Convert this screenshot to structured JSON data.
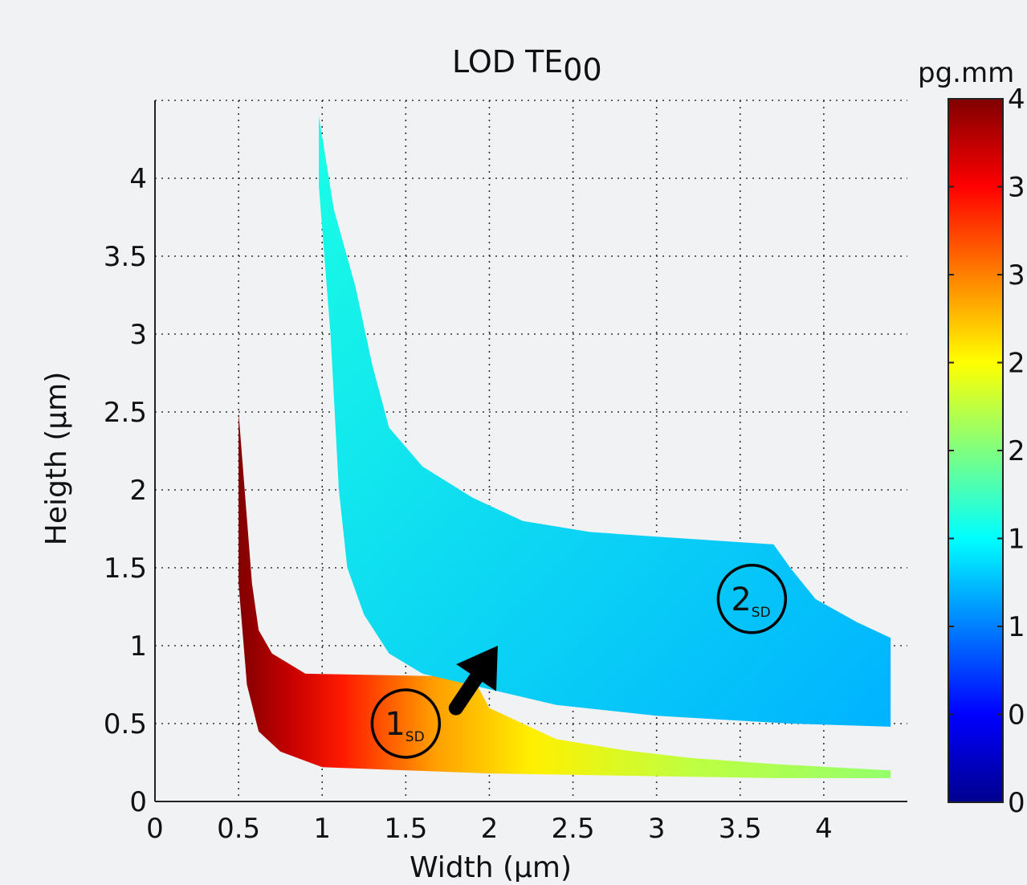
{
  "chart_data": {
    "type": "heatmap",
    "title": "LOD TE",
    "title_subscript": "00",
    "xlabel": "Width (µm)",
    "ylabel": "Heigth (µm)",
    "xlim": [
      0,
      4.5
    ],
    "ylim": [
      0,
      4.5
    ],
    "x_ticks": [
      0,
      0.5,
      1,
      1.5,
      2,
      2.5,
      3,
      3.5,
      4
    ],
    "x_tick_labels": [
      "0",
      "0.5",
      "1",
      "1.5",
      "2",
      "2.5",
      "3",
      "3.5",
      "4"
    ],
    "y_ticks": [
      0,
      0.5,
      1,
      1.5,
      2,
      2.5,
      3,
      3.5,
      4
    ],
    "y_tick_labels": [
      "0",
      "0.5",
      "1",
      "1.5",
      "2",
      "2.5",
      "3",
      "3.5",
      "4"
    ],
    "grid": true,
    "colormap": "jet",
    "colorbar": {
      "unit_label": "pg.mm",
      "tick_labels": [
        "4",
        "3",
        "3",
        "2",
        "2",
        "1",
        "1",
        "0",
        "0"
      ]
    },
    "regions": [
      {
        "label": "1",
        "label_subscript": "SD",
        "label_center": [
          1.5,
          0.5
        ],
        "relative_value_range": [
          0.52,
          1.0
        ],
        "boundary_upper": [
          [
            0.5,
            2.5
          ],
          [
            0.58,
            1.4
          ],
          [
            0.62,
            1.1
          ],
          [
            0.7,
            0.95
          ],
          [
            0.9,
            0.82
          ],
          [
            1.9,
            0.8
          ],
          [
            2.0,
            0.6
          ],
          [
            2.4,
            0.4
          ],
          [
            2.8,
            0.33
          ],
          [
            3.2,
            0.28
          ],
          [
            3.7,
            0.24
          ],
          [
            4.4,
            0.2
          ]
        ],
        "boundary_lower": [
          [
            0.5,
            1.4
          ],
          [
            0.55,
            0.75
          ],
          [
            0.62,
            0.45
          ],
          [
            0.75,
            0.32
          ],
          [
            1.0,
            0.22
          ],
          [
            2.0,
            0.18
          ],
          [
            3.7,
            0.15
          ],
          [
            4.4,
            0.15
          ]
        ]
      },
      {
        "label": "2",
        "label_subscript": "SD",
        "label_center": [
          3.57,
          1.3
        ],
        "relative_value_range": [
          0.3,
          0.4
        ],
        "boundary_upper": [
          [
            0.98,
            4.4
          ],
          [
            1.07,
            3.8
          ],
          [
            1.2,
            3.3
          ],
          [
            1.3,
            2.8
          ],
          [
            1.4,
            2.4
          ],
          [
            1.6,
            2.15
          ],
          [
            1.9,
            1.95
          ],
          [
            2.2,
            1.8
          ],
          [
            2.6,
            1.73
          ],
          [
            3.0,
            1.7
          ],
          [
            3.7,
            1.65
          ],
          [
            3.8,
            1.5
          ],
          [
            3.95,
            1.3
          ],
          [
            4.2,
            1.15
          ],
          [
            4.4,
            1.05
          ]
        ],
        "boundary_lower": [
          [
            0.98,
            3.95
          ],
          [
            1.05,
            3.0
          ],
          [
            1.1,
            2.0
          ],
          [
            1.15,
            1.5
          ],
          [
            1.25,
            1.2
          ],
          [
            1.4,
            0.95
          ],
          [
            1.6,
            0.82
          ],
          [
            2.0,
            0.72
          ],
          [
            2.4,
            0.62
          ],
          [
            3.0,
            0.55
          ],
          [
            3.8,
            0.5
          ],
          [
            4.4,
            0.48
          ]
        ]
      }
    ],
    "arrow": {
      "from": [
        1.8,
        0.6
      ],
      "to": [
        2.05,
        1.0
      ]
    }
  }
}
